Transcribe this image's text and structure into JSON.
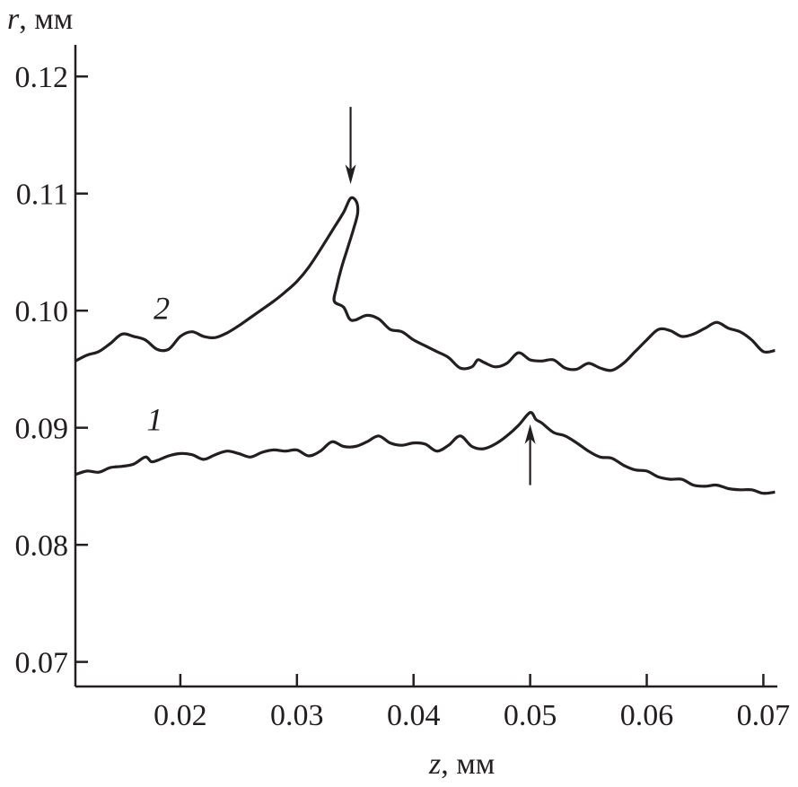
{
  "chart_data": {
    "type": "line",
    "xlabel_var": "z",
    "xlabel_unit": ", мм",
    "ylabel_var": "r",
    "ylabel_unit": ", мм",
    "xlim": [
      0.011,
      0.0712
    ],
    "ylim": [
      0.0679,
      0.1227
    ],
    "xticks": [
      "0.02",
      "0.03",
      "0.04",
      "0.05",
      "0.06",
      "0.07"
    ],
    "yticks": [
      "0.07",
      "0.08",
      "0.09",
      "0.10",
      "0.11",
      "0.12"
    ],
    "grid": false,
    "line_color": "#231f20",
    "series": [
      {
        "name": "1",
        "label_at": [
          0.0178,
          0.0898
        ],
        "points": [
          [
            0.011,
            0.086
          ],
          [
            0.012,
            0.0863
          ],
          [
            0.013,
            0.0862
          ],
          [
            0.014,
            0.0866
          ],
          [
            0.015,
            0.0867
          ],
          [
            0.016,
            0.0869
          ],
          [
            0.017,
            0.0875
          ],
          [
            0.0175,
            0.0871
          ],
          [
            0.018,
            0.0872
          ],
          [
            0.019,
            0.0876
          ],
          [
            0.02,
            0.0878
          ],
          [
            0.021,
            0.0877
          ],
          [
            0.022,
            0.0873
          ],
          [
            0.023,
            0.0877
          ],
          [
            0.024,
            0.088
          ],
          [
            0.025,
            0.0878
          ],
          [
            0.026,
            0.0875
          ],
          [
            0.027,
            0.0879
          ],
          [
            0.028,
            0.0881
          ],
          [
            0.029,
            0.088
          ],
          [
            0.03,
            0.0881
          ],
          [
            0.031,
            0.0876
          ],
          [
            0.032,
            0.088
          ],
          [
            0.033,
            0.0888
          ],
          [
            0.034,
            0.0884
          ],
          [
            0.035,
            0.0884
          ],
          [
            0.036,
            0.0888
          ],
          [
            0.037,
            0.0893
          ],
          [
            0.038,
            0.0887
          ],
          [
            0.039,
            0.0885
          ],
          [
            0.04,
            0.0887
          ],
          [
            0.041,
            0.0886
          ],
          [
            0.042,
            0.088
          ],
          [
            0.043,
            0.0885
          ],
          [
            0.044,
            0.0893
          ],
          [
            0.045,
            0.0884
          ],
          [
            0.046,
            0.0882
          ],
          [
            0.047,
            0.0886
          ],
          [
            0.048,
            0.0893
          ],
          [
            0.049,
            0.0902
          ],
          [
            0.05,
            0.0913
          ],
          [
            0.0505,
            0.0907
          ],
          [
            0.051,
            0.0904
          ],
          [
            0.052,
            0.0896
          ],
          [
            0.053,
            0.0893
          ],
          [
            0.054,
            0.0887
          ],
          [
            0.055,
            0.088
          ],
          [
            0.056,
            0.0875
          ],
          [
            0.057,
            0.0874
          ],
          [
            0.058,
            0.0868
          ],
          [
            0.059,
            0.0864
          ],
          [
            0.06,
            0.0863
          ],
          [
            0.061,
            0.0858
          ],
          [
            0.062,
            0.0856
          ],
          [
            0.063,
            0.0856
          ],
          [
            0.064,
            0.0851
          ],
          [
            0.065,
            0.085
          ],
          [
            0.066,
            0.0851
          ],
          [
            0.067,
            0.0848
          ],
          [
            0.068,
            0.0847
          ],
          [
            0.069,
            0.0847
          ],
          [
            0.07,
            0.0844
          ],
          [
            0.071,
            0.0845
          ]
        ]
      },
      {
        "name": "2",
        "label_at": [
          0.0184,
          0.0993
        ],
        "points": [
          [
            0.011,
            0.0957
          ],
          [
            0.012,
            0.0962
          ],
          [
            0.013,
            0.0965
          ],
          [
            0.014,
            0.0972
          ],
          [
            0.015,
            0.098
          ],
          [
            0.016,
            0.0978
          ],
          [
            0.017,
            0.0975
          ],
          [
            0.018,
            0.0967
          ],
          [
            0.019,
            0.0967
          ],
          [
            0.02,
            0.0978
          ],
          [
            0.021,
            0.0982
          ],
          [
            0.022,
            0.0978
          ],
          [
            0.023,
            0.0977
          ],
          [
            0.024,
            0.0981
          ],
          [
            0.025,
            0.0987
          ],
          [
            0.026,
            0.0994
          ],
          [
            0.027,
            0.1001
          ],
          [
            0.028,
            0.1008
          ],
          [
            0.029,
            0.1016
          ],
          [
            0.03,
            0.1025
          ],
          [
            0.031,
            0.1037
          ],
          [
            0.032,
            0.1052
          ],
          [
            0.033,
            0.1068
          ],
          [
            0.034,
            0.1084
          ],
          [
            0.0346,
            0.1096
          ],
          [
            0.0351,
            0.1093
          ],
          [
            0.0352,
            0.1083
          ],
          [
            0.0348,
            0.1068
          ],
          [
            0.0343,
            0.1052
          ],
          [
            0.0338,
            0.1036
          ],
          [
            0.0334,
            0.102
          ],
          [
            0.0332,
            0.1008
          ],
          [
            0.034,
            0.1003
          ],
          [
            0.0345,
            0.0993
          ],
          [
            0.035,
            0.0992
          ],
          [
            0.036,
            0.0996
          ],
          [
            0.037,
            0.0993
          ],
          [
            0.038,
            0.0984
          ],
          [
            0.039,
            0.0982
          ],
          [
            0.04,
            0.0975
          ],
          [
            0.041,
            0.097
          ],
          [
            0.042,
            0.0965
          ],
          [
            0.043,
            0.096
          ],
          [
            0.044,
            0.0951
          ],
          [
            0.045,
            0.0952
          ],
          [
            0.0455,
            0.0958
          ],
          [
            0.046,
            0.0956
          ],
          [
            0.047,
            0.0952
          ],
          [
            0.048,
            0.0955
          ],
          [
            0.049,
            0.0964
          ],
          [
            0.05,
            0.0958
          ],
          [
            0.051,
            0.0957
          ],
          [
            0.052,
            0.0958
          ],
          [
            0.053,
            0.0951
          ],
          [
            0.054,
            0.095
          ],
          [
            0.055,
            0.0955
          ],
          [
            0.056,
            0.0951
          ],
          [
            0.057,
            0.0949
          ],
          [
            0.058,
            0.0955
          ],
          [
            0.059,
            0.0965
          ],
          [
            0.06,
            0.0975
          ],
          [
            0.061,
            0.0984
          ],
          [
            0.062,
            0.0983
          ],
          [
            0.063,
            0.0978
          ],
          [
            0.064,
            0.098
          ],
          [
            0.065,
            0.0985
          ],
          [
            0.066,
            0.099
          ],
          [
            0.067,
            0.0985
          ],
          [
            0.068,
            0.0982
          ],
          [
            0.069,
            0.0975
          ],
          [
            0.07,
            0.0965
          ],
          [
            0.071,
            0.0966
          ]
        ]
      }
    ],
    "annotations": [
      {
        "type": "arrow",
        "direction": "down",
        "from": [
          0.0346,
          0.1174
        ],
        "to": [
          0.0346,
          0.1108
        ]
      },
      {
        "type": "arrow",
        "direction": "up",
        "from": [
          0.05,
          0.0851
        ],
        "to": [
          0.05,
          0.0903
        ]
      }
    ]
  }
}
